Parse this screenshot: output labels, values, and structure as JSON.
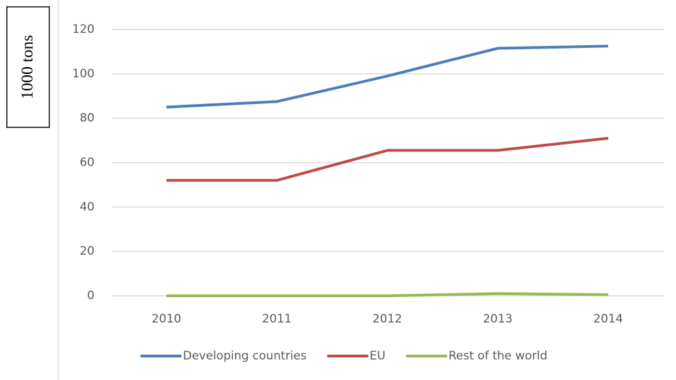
{
  "chart_data": {
    "type": "line",
    "y_label": "1000 tons",
    "categories": [
      "2010",
      "2011",
      "2012",
      "2013",
      "2014"
    ],
    "series": [
      {
        "name": "Developing countries",
        "color": "#4a7ebb",
        "values": [
          85,
          87.5,
          99,
          111.5,
          112.5
        ]
      },
      {
        "name": "EU",
        "color": "#be4b48",
        "values": [
          52,
          52,
          65.5,
          65.5,
          71
        ]
      },
      {
        "name": "Rest of the world",
        "color": "#98b954",
        "values": [
          0,
          0,
          0,
          1,
          0.5
        ]
      }
    ],
    "ylim": [
      0,
      120
    ],
    "yticks": [
      0,
      20,
      40,
      60,
      80,
      100,
      120
    ],
    "grid": true,
    "legend": "bottom"
  }
}
